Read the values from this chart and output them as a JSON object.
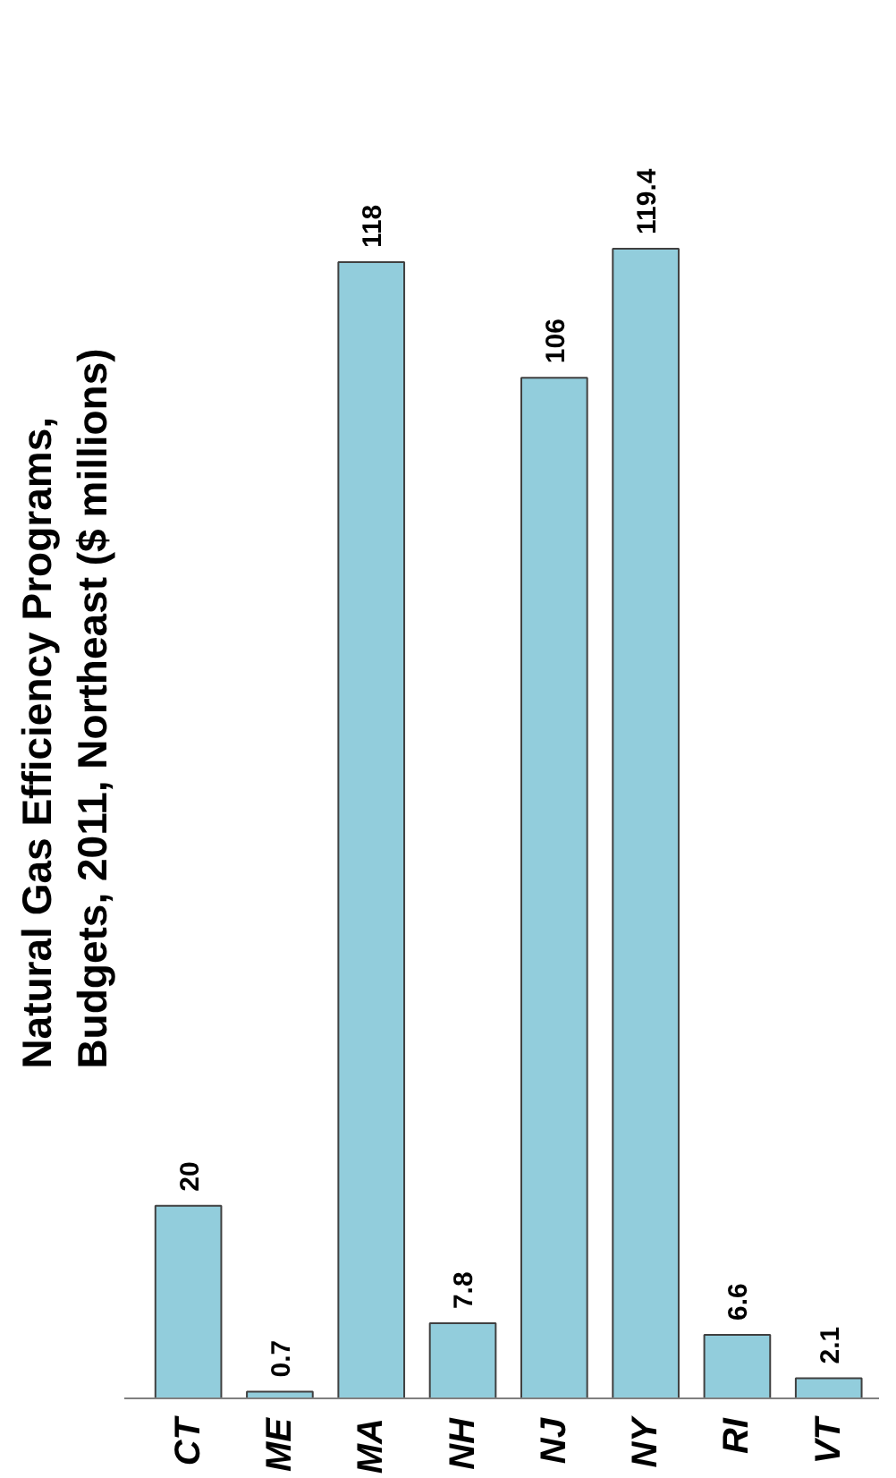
{
  "chart_data": {
    "type": "bar",
    "title": "Natural Gas Efficiency Programs,\nBudgets, 2011, Northeast ($ millions)",
    "categories": [
      "CT",
      "ME",
      "MA",
      "NH",
      "NJ",
      "NY",
      "RI",
      "VT"
    ],
    "values": [
      20,
      0.7,
      118,
      7.8,
      106,
      119.4,
      6.6,
      2.1
    ],
    "color": "#92cddc",
    "data_labels": true,
    "grid": false,
    "tick_labels": "x"
  }
}
